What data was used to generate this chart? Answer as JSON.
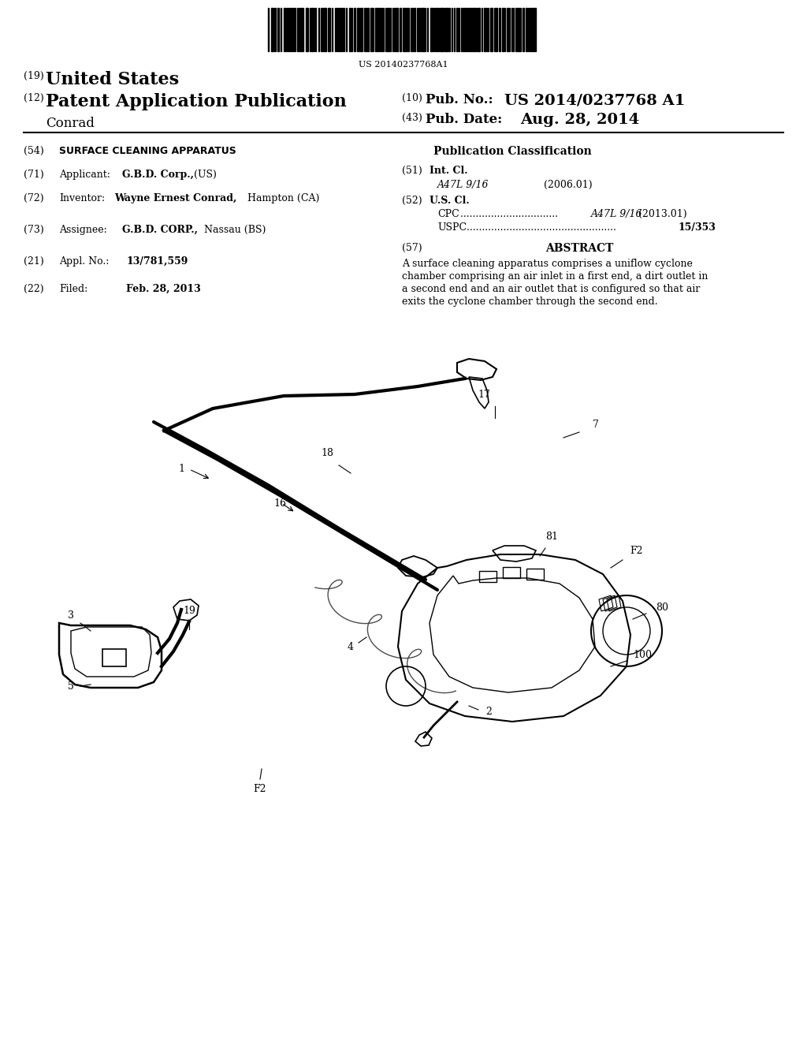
{
  "background_color": "#ffffff",
  "barcode_text": "US 20140237768A1",
  "number19": "(19)",
  "united_states": "United States",
  "number12": "(12)",
  "patent_app_pub": "Patent Application Publication",
  "inventor_name": "Conrad",
  "number10": "(10)",
  "pub_no_label": "Pub. No.:",
  "pub_no_value": "US 2014/0237768 A1",
  "number43": "(43)",
  "pub_date_label": "Pub. Date:",
  "pub_date_value": "Aug. 28, 2014",
  "num54": "(54)",
  "title": "SURFACE CLEANING APPARATUS",
  "pub_class_header": "Publication Classification",
  "num71": "(71)",
  "applicant_label": "Applicant:",
  "applicant_bold": "G.B.D. Corp.,",
  "applicant_plain": " (US)",
  "num51": "(51)",
  "int_cl_label": "Int. Cl.",
  "int_cl_code": "A47L 9/16",
  "int_cl_year": "(2006.01)",
  "num72": "(72)",
  "inventor_label": "Inventor:",
  "inventor_bold": "Wayne Ernest Conrad,",
  "inventor_plain": " Hampton (CA)",
  "num52": "(52)",
  "us_cl_label": "U.S. Cl.",
  "cpc_label": "CPC",
  "cpc_dots": " ................................",
  "cpc_code": "A47L 9/16",
  "cpc_year": "(2013.01)",
  "uspc_label": "USPC",
  "uspc_dots": " .................................................",
  "uspc_code": "15/353",
  "num73": "(73)",
  "assignee_label": "Assignee:",
  "assignee_bold": "G.B.D. CORP.,",
  "assignee_plain": " Nassau (BS)",
  "num57": "(57)",
  "abstract_header": "ABSTRACT",
  "abstract_text": "A surface cleaning apparatus comprises a uniflow cyclone\nchamber comprising an air inlet in a first end, a dirt outlet in\na second end and an air outlet that is configured so that air\nexits the cyclone chamber through the second end.",
  "num21": "(21)",
  "appl_no_label": "Appl. No.:",
  "appl_no_value": "13/781,559",
  "num22": "(22)",
  "filed_label": "Filed:",
  "filed_value": "Feb. 28, 2013",
  "diagram_labels": [
    "1",
    "2",
    "3",
    "4",
    "5",
    "7",
    "16",
    "17",
    "18",
    "19",
    "80",
    "81",
    "100",
    "F2",
    "F2"
  ],
  "line_color": "#000000",
  "text_color": "#000000"
}
